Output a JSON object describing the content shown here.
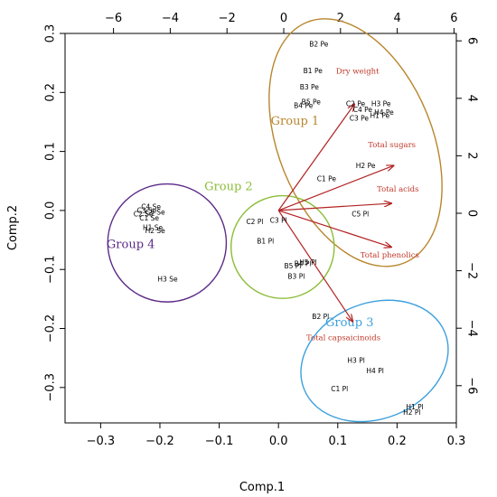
{
  "chart_data": {
    "type": "scatter",
    "xlabel": "Comp.1",
    "ylabel": "Comp.2",
    "xlim": [
      -0.36,
      0.3
    ],
    "ylim": [
      -0.36,
      0.3
    ],
    "x_ticks": [
      "−0.3",
      "−0.2",
      "−0.1",
      "0.0",
      "0.1",
      "0.2",
      "0.3"
    ],
    "y_ticks": [
      "−0.3",
      "−0.2",
      "−0.1",
      "0.0",
      "0.1",
      "0.2",
      "0.3"
    ],
    "top_ticks": [
      "−6",
      "−4",
      "−2",
      "0",
      "2",
      "4",
      "6"
    ],
    "right_ticks": [
      "−6",
      "−4",
      "−2",
      "0",
      "2",
      "4",
      "6"
    ],
    "points": [
      {
        "label": "B2 Pe",
        "x": 0.068,
        "y": 0.281
      },
      {
        "label": "B1 Pe",
        "x": 0.058,
        "y": 0.236
      },
      {
        "label": "B3 Pe",
        "x": 0.052,
        "y": 0.208
      },
      {
        "label": "B5 Pe",
        "x": 0.055,
        "y": 0.183
      },
      {
        "label": "B4 Pe",
        "x": 0.042,
        "y": 0.177
      },
      {
        "label": "C2 Pe",
        "x": 0.13,
        "y": 0.18
      },
      {
        "label": "C4 Pe",
        "x": 0.142,
        "y": 0.17
      },
      {
        "label": "C3 Pe",
        "x": 0.136,
        "y": 0.155
      },
      {
        "label": "H3 Pe",
        "x": 0.173,
        "y": 0.18
      },
      {
        "label": "H4 Pe",
        "x": 0.178,
        "y": 0.165
      },
      {
        "label": "H1 Pe",
        "x": 0.171,
        "y": 0.16
      },
      {
        "label": "C1 Pe",
        "x": 0.081,
        "y": 0.053
      },
      {
        "label": "H2 Pe",
        "x": 0.147,
        "y": 0.075
      },
      {
        "label": "C5 Pl",
        "x": 0.138,
        "y": -0.007
      },
      {
        "label": "C2 Pl",
        "x": -0.04,
        "y": -0.02
      },
      {
        "label": "C3 Pl",
        "x": 0.0,
        "y": -0.018
      },
      {
        "label": "B1 Pl",
        "x": -0.022,
        "y": -0.053
      },
      {
        "label": "B5 Pl",
        "x": 0.024,
        "y": -0.095
      },
      {
        "label": "B4 Pl",
        "x": 0.041,
        "y": -0.091
      },
      {
        "label": "H5 Pl",
        "x": 0.05,
        "y": -0.089
      },
      {
        "label": "B3 Pl",
        "x": 0.03,
        "y": -0.113
      },
      {
        "label": "B2 Pl",
        "x": 0.071,
        "y": -0.181
      },
      {
        "label": "H3 Pl",
        "x": 0.131,
        "y": -0.255
      },
      {
        "label": "H4 Pl",
        "x": 0.163,
        "y": -0.273
      },
      {
        "label": "C1 Pl",
        "x": 0.103,
        "y": -0.303
      },
      {
        "label": "H1 Pl",
        "x": 0.23,
        "y": -0.334
      },
      {
        "label": "H2 Pl",
        "x": 0.225,
        "y": -0.343
      },
      {
        "label": "C4 Se",
        "x": -0.215,
        "y": 0.005
      },
      {
        "label": "C3 Se",
        "x": -0.222,
        "y": -0.001
      },
      {
        "label": "C5 Se",
        "x": -0.208,
        "y": -0.004
      },
      {
        "label": "C2 Se",
        "x": -0.228,
        "y": -0.007
      },
      {
        "label": "C1 Se",
        "x": -0.218,
        "y": -0.014
      },
      {
        "label": "H1 Se",
        "x": -0.212,
        "y": -0.03
      },
      {
        "label": "H2 Se",
        "x": -0.208,
        "y": -0.035
      },
      {
        "label": "H3 Se",
        "x": -0.187,
        "y": -0.117
      }
    ],
    "variables": [
      {
        "label": "Dry weight",
        "x": 0.128,
        "y": 0.18,
        "label_x": 0.097,
        "label_y": 0.232
      },
      {
        "label": "Total sugars",
        "x": 0.194,
        "y": 0.076,
        "label_x": 0.151,
        "label_y": 0.107
      },
      {
        "label": "Total acids",
        "x": 0.19,
        "y": 0.012,
        "label_x": 0.166,
        "label_y": 0.032
      },
      {
        "label": "Total phenolics",
        "x": 0.19,
        "y": -0.062,
        "label_x": 0.138,
        "label_y": -0.08
      },
      {
        "label": "Total capsaicinoids",
        "x": 0.125,
        "y": -0.188,
        "label_x": 0.047,
        "label_y": -0.22
      }
    ],
    "groups": [
      {
        "label": "Group 1",
        "color": "#b8862d",
        "cx": 0.13,
        "cy": 0.115,
        "rx": 0.13,
        "ry": 0.22,
        "angle_deg": -22,
        "label_x": -0.013,
        "label_y": 0.145
      },
      {
        "label": "Group 2",
        "color": "#8cbd39",
        "cx": 0.007,
        "cy": -0.062,
        "rx": 0.087,
        "ry": 0.087,
        "angle_deg": 0,
        "label_x": -0.125,
        "label_y": 0.034
      },
      {
        "label": "Group 3",
        "color": "#3da0dc",
        "cx": 0.162,
        "cy": -0.255,
        "rx": 0.128,
        "ry": 0.098,
        "angle_deg": -22,
        "label_x": 0.079,
        "label_y": -0.196
      },
      {
        "label": "Group 4",
        "color": "#5b2a86",
        "cx": -0.188,
        "cy": -0.055,
        "rx": 0.1,
        "ry": 0.1,
        "angle_deg": 0,
        "label_x": -0.29,
        "label_y": -0.064
      }
    ],
    "arrow_color": "#b22222",
    "grid": false
  }
}
